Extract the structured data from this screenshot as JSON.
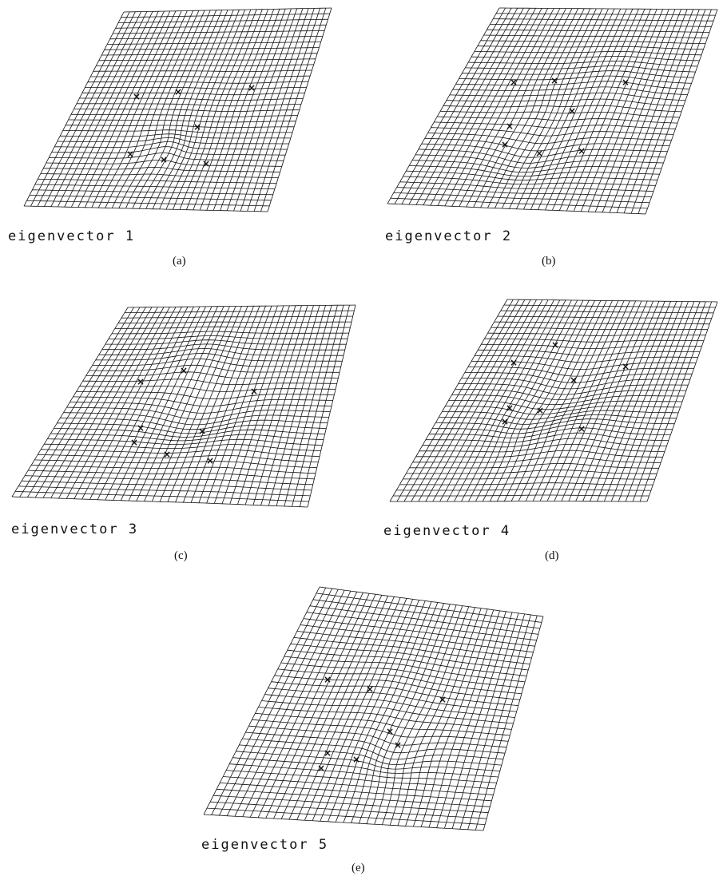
{
  "panels": [
    {
      "id": "a",
      "label": "eigenvector 1",
      "caption": "(a)"
    },
    {
      "id": "b",
      "label": "eigenvector 2",
      "caption": "(b)"
    },
    {
      "id": "c",
      "label": "eigenvector 3",
      "caption": "(c)"
    },
    {
      "id": "d",
      "label": "eigenvector 4",
      "caption": "(d)"
    },
    {
      "id": "e",
      "label": "eigenvector 5",
      "caption": "(e)"
    }
  ],
  "grid_color": "#111111",
  "landmark_marker": "×"
}
